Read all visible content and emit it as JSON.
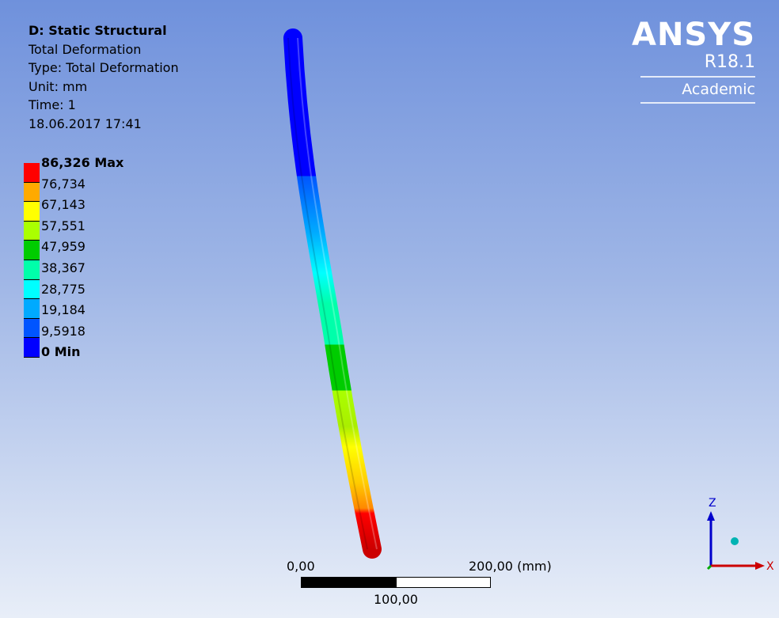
{
  "info": {
    "analysis": "D: Static Structural",
    "result": "Total Deformation",
    "type": "Type: Total Deformation",
    "unit": "Unit: mm",
    "time": "Time: 1",
    "date": "18.06.2017 17:41"
  },
  "legend": {
    "labels": [
      "86,326 Max",
      "76,734",
      "67,143",
      "57,551",
      "47,959",
      "38,367",
      "28,775",
      "19,184",
      "9,5918",
      "0 Min"
    ],
    "colors": [
      "#ff0000",
      "#ffaa00",
      "#ffff00",
      "#aaff00",
      "#00cc00",
      "#00ffaa",
      "#00ffff",
      "#00aaff",
      "#0055ff",
      "#0000ff"
    ]
  },
  "logo": {
    "brand": "ANSYS",
    "version": "R18.1",
    "edition": "Academic"
  },
  "scale": {
    "left": "0,00",
    "right": "200,00 (mm)",
    "middle": "100,00"
  },
  "triad": {
    "z": "Z",
    "x": "X"
  }
}
